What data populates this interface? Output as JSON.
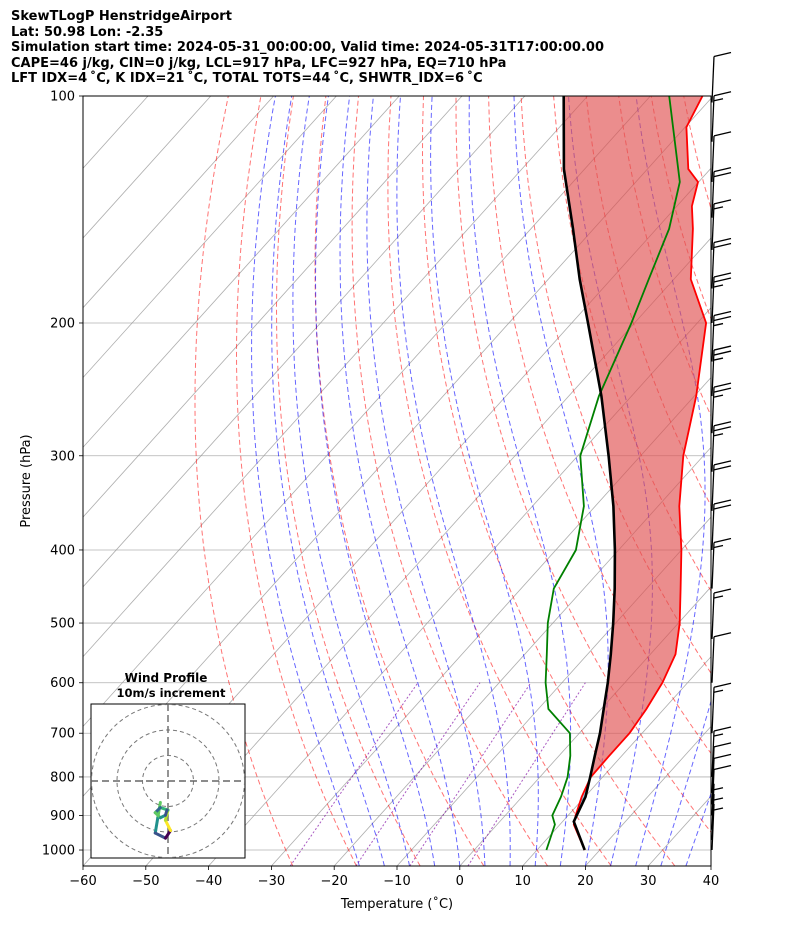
{
  "header": {
    "lines": [
      "SkewTLogP HenstridgeAirport",
      "Lat: 50.98   Lon: -2.35",
      "Simulation start time: 2024-05-31_00:00:00, Valid time: 2024-05-31T17:00:00.00",
      "CAPE=46 j/kg, CIN=0 j/kg, LCL=917 hPa, LFC=927 hPa, EQ=710 hPa",
      "LFT IDX=4 ˚C, K IDX=21 ˚C, TOTAL TOTS=44 ˚C, SHWTR_IDX=6 ˚C"
    ]
  },
  "chart_data": {
    "type": "line",
    "subtype": "skew-t log-p",
    "xlabel": "Temperature (˚C)",
    "ylabel": "Pressure (hPa)",
    "xlim": [
      -60,
      40
    ],
    "ylim": [
      1050,
      100
    ],
    "yscale": "log",
    "x_ticks": [
      -60,
      -50,
      -40,
      -30,
      -20,
      -10,
      0,
      10,
      20,
      30,
      40
    ],
    "y_ticks": [
      100,
      200,
      300,
      400,
      500,
      600,
      700,
      800,
      900,
      1000
    ],
    "grid": true,
    "colors": {
      "temperature": "#ff0000",
      "dewpoint": "#008000",
      "parcel": "#000000",
      "cape_fill": "#2b7bb9",
      "cin_fill": "#e05050",
      "dry_adiabats": "#ff0000",
      "moist_adiabats": "#0000ff",
      "mixing_ratio": "#7b00a0",
      "isotherms": "#999999"
    },
    "series": [
      {
        "role": "temperature",
        "points": [
          [
            17.6,
            1000
          ],
          [
            12.2,
            925
          ],
          [
            11.2,
            900
          ],
          [
            9.5,
            850
          ],
          [
            8.1,
            800
          ],
          [
            8.0,
            750
          ],
          [
            8.0,
            700
          ],
          [
            7.2,
            650
          ],
          [
            6.0,
            600
          ],
          [
            4.0,
            550
          ],
          [
            0.2,
            500
          ],
          [
            -4.6,
            450
          ],
          [
            -10.0,
            400
          ],
          [
            -16.6,
            350
          ],
          [
            -23.2,
            300
          ],
          [
            -29.7,
            250
          ],
          [
            -38.6,
            200
          ],
          [
            -47.3,
            175
          ],
          [
            -54.2,
            150
          ],
          [
            -57.6,
            140
          ],
          [
            -60.1,
            130
          ],
          [
            -63.5,
            125
          ],
          [
            -69.8,
            110
          ],
          [
            -71.7,
            100
          ]
        ]
      },
      {
        "role": "dewpoint",
        "points": [
          [
            11.5,
            1000
          ],
          [
            9.2,
            925
          ],
          [
            7.5,
            900
          ],
          [
            6.2,
            850
          ],
          [
            4.4,
            800
          ],
          [
            1.8,
            750
          ],
          [
            -1.5,
            700
          ],
          [
            -8.4,
            650
          ],
          [
            -12.6,
            600
          ],
          [
            -16.5,
            550
          ],
          [
            -20.8,
            500
          ],
          [
            -24.8,
            450
          ],
          [
            -26.8,
            400
          ],
          [
            -31.8,
            350
          ],
          [
            -39.6,
            300
          ],
          [
            -45.2,
            250
          ],
          [
            -50.5,
            200
          ],
          [
            -54.0,
            175
          ],
          [
            -58.0,
            150
          ],
          [
            -63.0,
            130
          ],
          [
            -77.0,
            100
          ]
        ]
      },
      {
        "role": "parcel",
        "points": [
          [
            17.6,
            1000
          ],
          [
            11.8,
            917
          ],
          [
            10.1,
            850
          ],
          [
            8.0,
            800
          ],
          [
            5.7,
            750
          ],
          [
            3.3,
            700
          ],
          [
            0.4,
            650
          ],
          [
            -2.7,
            600
          ],
          [
            -6.3,
            550
          ],
          [
            -10.4,
            500
          ],
          [
            -15.1,
            450
          ],
          [
            -20.6,
            400
          ],
          [
            -27.1,
            350
          ],
          [
            -35.1,
            300
          ],
          [
            -44.8,
            250
          ],
          [
            -57.4,
            200
          ],
          [
            -65.0,
            175
          ],
          [
            -73.3,
            150
          ],
          [
            -83.3,
            125
          ],
          [
            -93.8,
            100
          ]
        ]
      }
    ],
    "wind_barbs": [
      {
        "p": 1000,
        "speed_kt": 5
      },
      {
        "p": 970,
        "speed_kt": 5
      },
      {
        "p": 940,
        "speed_kt": 5
      },
      {
        "p": 900,
        "speed_kt": 10
      },
      {
        "p": 870,
        "speed_kt": 10
      },
      {
        "p": 840,
        "speed_kt": 10
      },
      {
        "p": 800,
        "speed_kt": 15
      },
      {
        "p": 700,
        "speed_kt": 15
      },
      {
        "p": 600,
        "speed_kt": 10
      },
      {
        "p": 525,
        "speed_kt": 15
      },
      {
        "p": 450,
        "speed_kt": 15
      },
      {
        "p": 400,
        "speed_kt": 20
      },
      {
        "p": 355,
        "speed_kt": 20
      },
      {
        "p": 315,
        "speed_kt": 25
      },
      {
        "p": 280,
        "speed_kt": 25
      },
      {
        "p": 250,
        "speed_kt": 25
      },
      {
        "p": 225,
        "speed_kt": 25
      },
      {
        "p": 200,
        "speed_kt": 25
      },
      {
        "p": 180,
        "speed_kt": 20
      },
      {
        "p": 160,
        "speed_kt": 15
      },
      {
        "p": 145,
        "speed_kt": 20
      },
      {
        "p": 130,
        "speed_kt": 10
      },
      {
        "p": 115,
        "speed_kt": 15
      },
      {
        "p": 102,
        "speed_kt": 10
      }
    ],
    "inset": {
      "title": "Wind Profile",
      "subtitle": "10m/s increment",
      "rings_ms": [
        10,
        20,
        30
      ],
      "hodograph": [
        [
          -1.5,
          0.5
        ],
        [
          -2.0,
          -2.5
        ],
        [
          -2.5,
          -5.5
        ],
        [
          -0.5,
          -6.5
        ],
        [
          0.5,
          -5.0
        ],
        [
          -0.5,
          -3.0
        ],
        [
          0.0,
          -1.0
        ],
        [
          -1.5,
          -0.5
        ],
        [
          -2.5,
          -1.5
        ],
        [
          -1.5,
          -2.5
        ],
        [
          -0.5,
          -2.0
        ],
        [
          -0.2,
          -1.0
        ]
      ]
    }
  }
}
